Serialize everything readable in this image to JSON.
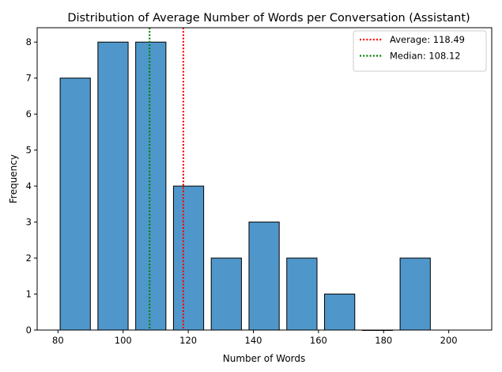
{
  "chart_data": {
    "type": "bar",
    "title": "Distribution of Average Number of Words per Conversation (Assistant)",
    "xlabel": "Number of Words",
    "ylabel": "Frequency",
    "xlim": [
      73.6,
      213.2
    ],
    "ylim": [
      0,
      8.4
    ],
    "xticks": [
      80,
      100,
      120,
      140,
      160,
      180,
      200
    ],
    "yticks": [
      0,
      1,
      2,
      3,
      4,
      5,
      6,
      7,
      8
    ],
    "bins": [
      {
        "start": 79.5,
        "end": 91.1,
        "count": 7
      },
      {
        "start": 91.1,
        "end": 102.7,
        "count": 8
      },
      {
        "start": 102.7,
        "end": 114.3,
        "count": 8
      },
      {
        "start": 114.3,
        "end": 125.9,
        "count": 4
      },
      {
        "start": 125.9,
        "end": 137.5,
        "count": 2
      },
      {
        "start": 137.5,
        "end": 149.1,
        "count": 3
      },
      {
        "start": 149.1,
        "end": 160.7,
        "count": 2
      },
      {
        "start": 160.7,
        "end": 172.3,
        "count": 1
      },
      {
        "start": 172.3,
        "end": 183.9,
        "count": 0
      },
      {
        "start": 183.9,
        "end": 195.5,
        "count": 2
      }
    ],
    "bar_color": "#4f97cb",
    "bar_edge_color": "#000000",
    "reference_lines": [
      {
        "label": "Average: 118.49",
        "value": 118.49,
        "color": "#ff0000",
        "style": "dotted"
      },
      {
        "label": "Median: 108.12",
        "value": 108.12,
        "color": "#008000",
        "style": "dotted"
      }
    ],
    "legend_position": "top-right",
    "grid": false
  }
}
